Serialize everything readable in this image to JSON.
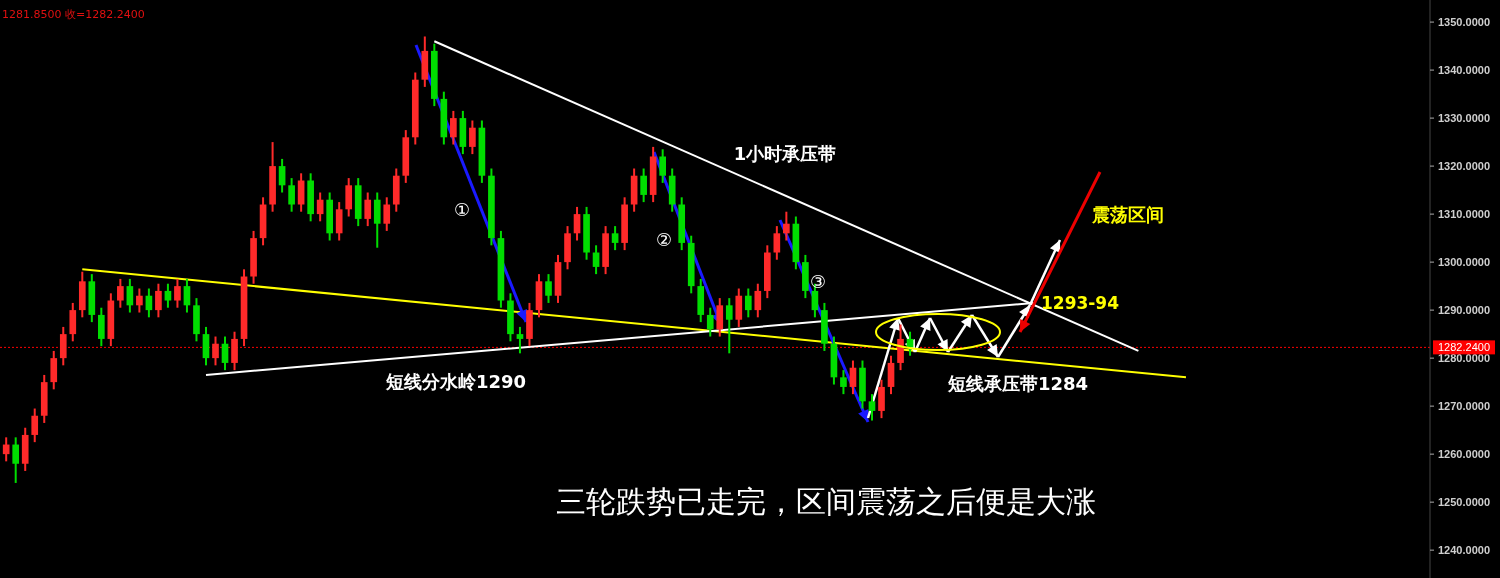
{
  "chart_data": {
    "type": "candlestick",
    "categories": [
      null,
      null,
      null,
      null,
      null,
      null,
      null,
      null,
      null,
      null,
      null,
      null,
      null,
      null,
      null,
      null,
      null,
      null,
      null,
      null,
      null,
      null,
      null,
      null,
      null,
      null,
      null,
      null,
      null,
      null,
      null,
      null,
      null,
      null,
      null,
      null,
      null,
      null,
      null,
      null,
      null,
      null,
      null,
      null,
      null,
      null,
      null,
      null,
      null,
      null,
      null,
      null,
      null,
      null,
      null,
      null,
      null,
      null,
      null,
      null,
      null,
      null,
      null,
      null,
      null,
      null,
      null,
      null,
      null,
      null,
      null,
      null,
      null,
      null,
      null,
      null,
      null,
      null,
      null,
      null,
      null,
      null,
      null,
      null,
      null,
      null,
      null,
      null,
      null,
      null,
      null,
      null,
      null,
      null,
      null,
      null,
      null,
      null,
      null,
      null,
      null,
      null,
      null,
      null,
      null,
      null,
      null,
      null,
      null,
      null,
      null,
      null,
      null,
      null,
      null,
      null,
      null,
      null,
      null,
      null,
      null,
      null,
      null,
      null,
      null,
      null,
      null,
      null,
      null,
      null,
      null,
      null,
      null,
      null,
      null,
      null,
      null,
      null,
      null,
      null,
      null,
      null,
      null,
      null,
      null,
      null,
      null,
      null,
      null,
      null
    ],
    "ohlc": [
      [
        1260,
        1263.5,
        1258.5,
        1262
      ],
      [
        1262,
        1263.5,
        1254,
        1258
      ],
      [
        1258,
        1265.5,
        1256.5,
        1264
      ],
      [
        1264,
        1269.5,
        1262.5,
        1268
      ],
      [
        1268,
        1276.5,
        1266.5,
        1275
      ],
      [
        1275,
        1281.5,
        1273.5,
        1280
      ],
      [
        1280,
        1286.5,
        1278.5,
        1285
      ],
      [
        1285,
        1291.5,
        1283.5,
        1290
      ],
      [
        1290,
        1298,
        1288.5,
        1296
      ],
      [
        1296,
        1297.5,
        1287.5,
        1289
      ],
      [
        1289,
        1290.5,
        1282.5,
        1284
      ],
      [
        1284,
        1293.5,
        1282.5,
        1292
      ],
      [
        1292,
        1296.5,
        1290.5,
        1295
      ],
      [
        1295,
        1296.5,
        1289.5,
        1291
      ],
      [
        1291,
        1294.5,
        1289.5,
        1293
      ],
      [
        1293,
        1294.5,
        1288.5,
        1290
      ],
      [
        1290,
        1295.5,
        1288.5,
        1294
      ],
      [
        1294,
        1295.5,
        1290.5,
        1292
      ],
      [
        1292,
        1296.5,
        1290.5,
        1295
      ],
      [
        1295,
        1296.5,
        1289.5,
        1291
      ],
      [
        1291,
        1292.5,
        1283.5,
        1285
      ],
      [
        1285,
        1286.5,
        1278.5,
        1280
      ],
      [
        1280,
        1284.5,
        1278.5,
        1283
      ],
      [
        1283,
        1284.5,
        1277.5,
        1279
      ],
      [
        1279,
        1285.5,
        1277.5,
        1284
      ],
      [
        1284,
        1298.5,
        1282.5,
        1297
      ],
      [
        1297,
        1306.5,
        1295.5,
        1305
      ],
      [
        1305,
        1313.5,
        1303.5,
        1312
      ],
      [
        1312,
        1325,
        1310.5,
        1320
      ],
      [
        1320,
        1321.5,
        1314.5,
        1316
      ],
      [
        1316,
        1317.5,
        1310.5,
        1312
      ],
      [
        1312,
        1318.5,
        1310.5,
        1317
      ],
      [
        1317,
        1318.5,
        1308.5,
        1310
      ],
      [
        1310,
        1314.5,
        1308.5,
        1313
      ],
      [
        1313,
        1314.5,
        1304.5,
        1306
      ],
      [
        1306,
        1312.5,
        1304.5,
        1311
      ],
      [
        1311,
        1317.5,
        1309.5,
        1316
      ],
      [
        1316,
        1317.5,
        1307.5,
        1309
      ],
      [
        1309,
        1314.5,
        1307.5,
        1313
      ],
      [
        1313,
        1314.5,
        1303,
        1308
      ],
      [
        1308,
        1313.5,
        1306.5,
        1312
      ],
      [
        1312,
        1319.5,
        1310.5,
        1318
      ],
      [
        1318,
        1327.5,
        1316.5,
        1326
      ],
      [
        1326,
        1339.5,
        1324.5,
        1338
      ],
      [
        1338,
        1347,
        1336.5,
        1344
      ],
      [
        1344,
        1345.5,
        1332.5,
        1334
      ],
      [
        1334,
        1335.5,
        1324.5,
        1326
      ],
      [
        1326,
        1331.5,
        1324.5,
        1330
      ],
      [
        1330,
        1331.5,
        1322.5,
        1324
      ],
      [
        1324,
        1329.5,
        1322.5,
        1328
      ],
      [
        1328,
        1329.5,
        1316.5,
        1318
      ],
      [
        1318,
        1319.5,
        1303.5,
        1305
      ],
      [
        1305,
        1306.5,
        1290.5,
        1292
      ],
      [
        1292,
        1293.5,
        1283.5,
        1285
      ],
      [
        1285,
        1286.5,
        1281,
        1284
      ],
      [
        1284,
        1291.5,
        1282.5,
        1290
      ],
      [
        1290,
        1297.5,
        1288.5,
        1296
      ],
      [
        1296,
        1297.5,
        1291.5,
        1293
      ],
      [
        1293,
        1301.5,
        1291.5,
        1300
      ],
      [
        1300,
        1307.5,
        1298.5,
        1306
      ],
      [
        1306,
        1311.5,
        1304.5,
        1310
      ],
      [
        1310,
        1311.5,
        1300.5,
        1302
      ],
      [
        1302,
        1303.5,
        1297.5,
        1299
      ],
      [
        1299,
        1307.5,
        1297.5,
        1306
      ],
      [
        1306,
        1307.5,
        1302.5,
        1304
      ],
      [
        1304,
        1313.5,
        1302.5,
        1312
      ],
      [
        1312,
        1319.5,
        1310.5,
        1318
      ],
      [
        1318,
        1319.5,
        1312.5,
        1314
      ],
      [
        1314,
        1324,
        1312.5,
        1322
      ],
      [
        1322,
        1323.5,
        1316.5,
        1318
      ],
      [
        1318,
        1319.5,
        1310.5,
        1312
      ],
      [
        1312,
        1313.5,
        1302.5,
        1304
      ],
      [
        1304,
        1305.5,
        1293.5,
        1295
      ],
      [
        1295,
        1296.5,
        1287.5,
        1289
      ],
      [
        1289,
        1290.5,
        1284.5,
        1286
      ],
      [
        1286,
        1292.5,
        1284.5,
        1291
      ],
      [
        1291,
        1292.5,
        1281,
        1288
      ],
      [
        1288,
        1294.5,
        1286.5,
        1293
      ],
      [
        1293,
        1294.5,
        1288.5,
        1290
      ],
      [
        1290,
        1295.5,
        1288.5,
        1294
      ],
      [
        1294,
        1303.5,
        1292.5,
        1302
      ],
      [
        1302,
        1307.5,
        1300.5,
        1306
      ],
      [
        1306,
        1310.5,
        1304.5,
        1308
      ],
      [
        1308,
        1309.5,
        1298.5,
        1300
      ],
      [
        1300,
        1301.5,
        1292.5,
        1294
      ],
      [
        1294,
        1295.5,
        1288.5,
        1290
      ],
      [
        1290,
        1291.5,
        1281.5,
        1283
      ],
      [
        1283,
        1284.5,
        1274.5,
        1276
      ],
      [
        1276,
        1277.5,
        1272.5,
        1274
      ],
      [
        1274,
        1279.5,
        1272.5,
        1278
      ],
      [
        1278,
        1279.5,
        1269.5,
        1271
      ],
      [
        1271,
        1272.5,
        1267,
        1269
      ],
      [
        1269,
        1275.5,
        1267.5,
        1274
      ],
      [
        1274,
        1280.5,
        1272.5,
        1279
      ],
      [
        1279,
        1287,
        1277.5,
        1284
      ],
      [
        1284,
        1285.5,
        1280.5,
        1282.24
      ],
      null,
      null,
      null,
      null,
      null,
      null,
      null,
      null,
      null,
      null,
      null,
      null,
      null,
      null,
      null,
      null,
      null,
      null,
      null,
      null,
      null,
      null,
      null,
      null,
      null,
      null,
      null,
      null,
      null,
      null,
      null,
      null,
      null,
      null,
      null,
      null,
      null,
      null,
      null,
      null,
      null,
      null,
      null,
      null,
      null,
      null,
      null,
      null,
      null,
      null,
      null,
      null,
      null,
      null
    ],
    "series": [
      {
        "type": "line",
        "color": "#ffff00",
        "values": [
          null,
          null,
          null,
          null,
          null,
          null,
          null,
          null,
          1298.5,
          null,
          null,
          null,
          null,
          null,
          null,
          null,
          null,
          null,
          null,
          null,
          null,
          null,
          null,
          null,
          null,
          null,
          null,
          null,
          null,
          null,
          null,
          null,
          null,
          null,
          null,
          null,
          null,
          null,
          null,
          null,
          null,
          null,
          null,
          null,
          null,
          null,
          null,
          null,
          null,
          null,
          null,
          null,
          null,
          null,
          null,
          null,
          null,
          null,
          null,
          null,
          null,
          null,
          null,
          null,
          null,
          null,
          null,
          null,
          null,
          null,
          null,
          null,
          null,
          null,
          null,
          null,
          null,
          null,
          null,
          null,
          null,
          null,
          null,
          null,
          null,
          null,
          null,
          null,
          null,
          null,
          null,
          null,
          null,
          null,
          null,
          null,
          null,
          null,
          null,
          null,
          null,
          null,
          null,
          null,
          null,
          null,
          null,
          null,
          null,
          null,
          null,
          null,
          null,
          null,
          null,
          null,
          null,
          null,
          null,
          null,
          null,
          null,
          null,
          null,
          1276,
          null,
          null,
          null,
          null,
          null,
          null,
          null,
          null,
          null,
          null,
          null,
          null,
          null,
          null,
          null,
          null,
          null,
          null,
          null,
          null,
          null,
          null,
          null,
          null,
          null
        ]
      },
      {
        "type": "line",
        "color": "#ffffff",
        "values": [
          null,
          null,
          null,
          null,
          null,
          null,
          null,
          null,
          null,
          null,
          null,
          null,
          null,
          null,
          null,
          null,
          null,
          null,
          null,
          null,
          null,
          null,
          null,
          null,
          null,
          null,
          null,
          null,
          null,
          null,
          null,
          null,
          null,
          null,
          null,
          null,
          null,
          null,
          null,
          null,
          null,
          null,
          null,
          null,
          null,
          1346,
          null,
          null,
          null,
          null,
          null,
          null,
          null,
          null,
          null,
          null,
          null,
          null,
          null,
          null,
          null,
          null,
          null,
          null,
          null,
          null,
          null,
          null,
          null,
          null,
          null,
          null,
          null,
          null,
          null,
          null,
          null,
          null,
          null,
          null,
          null,
          null,
          null,
          null,
          null,
          null,
          null,
          null,
          null,
          null,
          null,
          null,
          null,
          null,
          null,
          null,
          null,
          null,
          null,
          null,
          null,
          null,
          null,
          null,
          null,
          null,
          null,
          null,
          null,
          null,
          null,
          null,
          null,
          null,
          null,
          null,
          null,
          null,
          null,
          1281.5,
          null,
          null,
          null,
          null,
          null,
          null,
          null,
          null,
          null,
          null,
          null,
          null,
          null,
          null,
          null,
          null,
          null,
          null,
          null,
          null,
          null,
          null,
          null,
          null,
          null,
          null,
          null,
          null,
          null,
          null
        ]
      },
      {
        "type": "line",
        "color": "#ffffff",
        "values": [
          null,
          null,
          null,
          null,
          null,
          null,
          null,
          null,
          null,
          null,
          null,
          null,
          null,
          null,
          null,
          null,
          null,
          null,
          null,
          null,
          null,
          1276.5,
          null,
          null,
          null,
          null,
          null,
          null,
          null,
          null,
          null,
          null,
          null,
          null,
          null,
          null,
          null,
          null,
          null,
          null,
          null,
          null,
          null,
          null,
          null,
          null,
          null,
          null,
          null,
          null,
          null,
          null,
          null,
          null,
          null,
          null,
          null,
          null,
          null,
          null,
          null,
          null,
          null,
          null,
          null,
          null,
          null,
          null,
          null,
          null,
          null,
          null,
          null,
          null,
          null,
          null,
          null,
          null,
          null,
          null,
          null,
          null,
          null,
          null,
          null,
          null,
          null,
          null,
          null,
          null,
          null,
          null,
          null,
          null,
          null,
          null,
          null,
          null,
          null,
          null,
          null,
          null,
          null,
          null,
          null,
          null,
          null,
          null,
          1291.5,
          null,
          null,
          null,
          null,
          null,
          null,
          null,
          null,
          null,
          null,
          null,
          null,
          null,
          null,
          null,
          null,
          null,
          null,
          null,
          null,
          null,
          null,
          null,
          null,
          null,
          null,
          null,
          null,
          null,
          null,
          null,
          null,
          null,
          null,
          null,
          null,
          null,
          null,
          null,
          null,
          null
        ]
      }
    ],
    "ylim": [
      1234.2,
      1354.6
    ],
    "yticks": [
      {
        "value": 1240,
        "label": "1240.0000"
      },
      {
        "value": 1250,
        "label": "1250.0000"
      },
      {
        "value": 1260,
        "label": "1260.0000"
      },
      {
        "value": 1270,
        "label": "1270.0000"
      },
      {
        "value": 1280,
        "label": "1280.0000"
      },
      {
        "value": 1290,
        "label": "1290.0000"
      },
      {
        "value": 1300,
        "label": "1300.0000"
      },
      {
        "value": 1310,
        "label": "1310.0000"
      },
      {
        "value": 1320,
        "label": "1320.0000"
      },
      {
        "value": 1330,
        "label": "1330.0000"
      },
      {
        "value": 1340,
        "label": "1340.0000"
      },
      {
        "value": 1350,
        "label": "1350.0000"
      }
    ],
    "tick_labels": "y",
    "ref_lines": [
      {
        "axis": "y",
        "value": 1282.24,
        "label": "1282.2400",
        "color": "#ff0000",
        "line_style": "dashed"
      }
    ],
    "annotations": [
      "1281.8500 收=1282.2400",
      "1小时承压带",
      "①",
      "②",
      "③",
      "震荡区间",
      "1293-94",
      "短线分水岭1290",
      "短线承压带1284",
      "三轮跌势已走完，区间震荡之后便是大涨"
    ]
  }
}
